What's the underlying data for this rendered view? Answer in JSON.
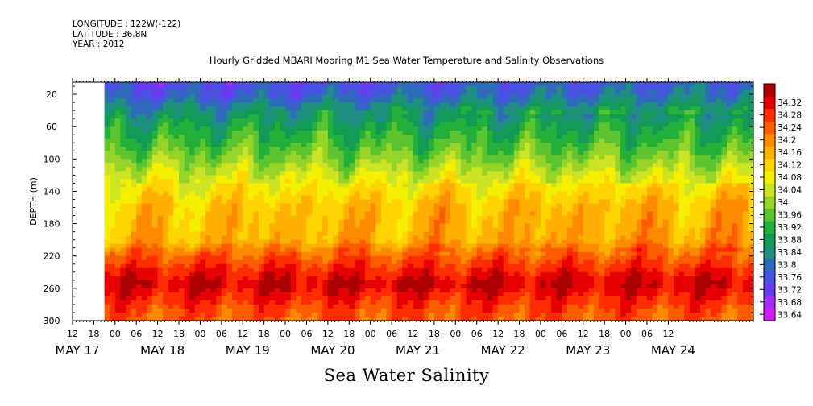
{
  "header": {
    "longitude": "LONGITUDE : 122W(-122)",
    "latitude": "LATITUDE : 36.8N",
    "year": "YEAR : 2012"
  },
  "title": "Hourly Gridded MBARI Mooring M1 Sea Water Temperature and Salinity Observations",
  "caption": "Sea Water Salinity",
  "chart_data": {
    "type": "heatmap",
    "title": "Hourly Gridded MBARI Mooring M1 Sea Water Temperature and Salinity Observations",
    "ylabel": "DEPTH (m)",
    "xlabel": "",
    "value_label": "Sea Water Salinity",
    "y_axis": {
      "ticks": [
        20,
        60,
        100,
        140,
        180,
        220,
        260,
        300
      ],
      "range": [
        5,
        300
      ],
      "inverted": true
    },
    "x_axis": {
      "range_hours": [
        12,
        204
      ],
      "hour_ticks": [
        "12",
        "18",
        "00",
        "06",
        "12",
        "18",
        "00",
        "06",
        "12",
        "18",
        "00",
        "06",
        "12",
        "18",
        "00",
        "06",
        "12",
        "18",
        "00",
        "06",
        "12",
        "18",
        "00",
        "06",
        "12",
        "18",
        "00",
        "06",
        "12"
      ],
      "date_labels": [
        "MAY 17",
        "MAY 18",
        "MAY 19",
        "MAY 20",
        "MAY 21",
        "MAY 22",
        "MAY 23",
        "MAY 24"
      ],
      "data_start_hour": 21
    },
    "colorbar": {
      "levels": [
        33.64,
        33.68,
        33.72,
        33.76,
        33.8,
        33.84,
        33.88,
        33.92,
        33.96,
        34,
        34.04,
        34.08,
        34.12,
        34.16,
        34.2,
        34.24,
        34.28,
        34.32
      ],
      "colors": [
        "#d21cfc",
        "#a22cf8",
        "#6a3cf0",
        "#4a52e2",
        "#2e6cba",
        "#1d8e80",
        "#129a56",
        "#23b03a",
        "#5cc42e",
        "#96d42a",
        "#cce424",
        "#f4f000",
        "#ffd400",
        "#ffb000",
        "#ff8a00",
        "#ff5c00",
        "#ff2c00",
        "#e60000",
        "#ab0000"
      ]
    },
    "profile": [
      {
        "depth": 5,
        "value": 33.72
      },
      {
        "depth": 20,
        "value": 33.74
      },
      {
        "depth": 40,
        "value": 33.82
      },
      {
        "depth": 60,
        "value": 33.88
      },
      {
        "depth": 80,
        "value": 33.92
      },
      {
        "depth": 100,
        "value": 33.97
      },
      {
        "depth": 120,
        "value": 34.03
      },
      {
        "depth": 140,
        "value": 34.07
      },
      {
        "depth": 160,
        "value": 34.11
      },
      {
        "depth": 180,
        "value": 34.12
      },
      {
        "depth": 200,
        "value": 34.13
      },
      {
        "depth": 220,
        "value": 34.22
      },
      {
        "depth": 240,
        "value": 34.28
      },
      {
        "depth": 255,
        "value": 34.32
      },
      {
        "depth": 270,
        "value": 34.28
      },
      {
        "depth": 285,
        "value": 34.24
      },
      {
        "depth": 300,
        "value": 34.22
      }
    ]
  }
}
